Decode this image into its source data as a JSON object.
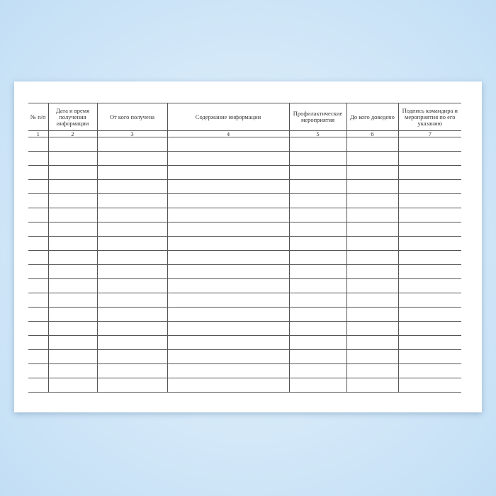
{
  "form": {
    "columns": [
      {
        "title": "№ п/п",
        "number": "1"
      },
      {
        "title": "Дата и время получения информации",
        "number": "2"
      },
      {
        "title": "От кого получена",
        "number": "3"
      },
      {
        "title": "Содержание информации",
        "number": "4"
      },
      {
        "title": "Профилактические мероприятия",
        "number": "5"
      },
      {
        "title": "До кого доведено",
        "number": "6"
      },
      {
        "title": "Подпись командира и мероприятия по его указанию",
        "number": "7"
      }
    ],
    "empty_rows": 18
  }
}
